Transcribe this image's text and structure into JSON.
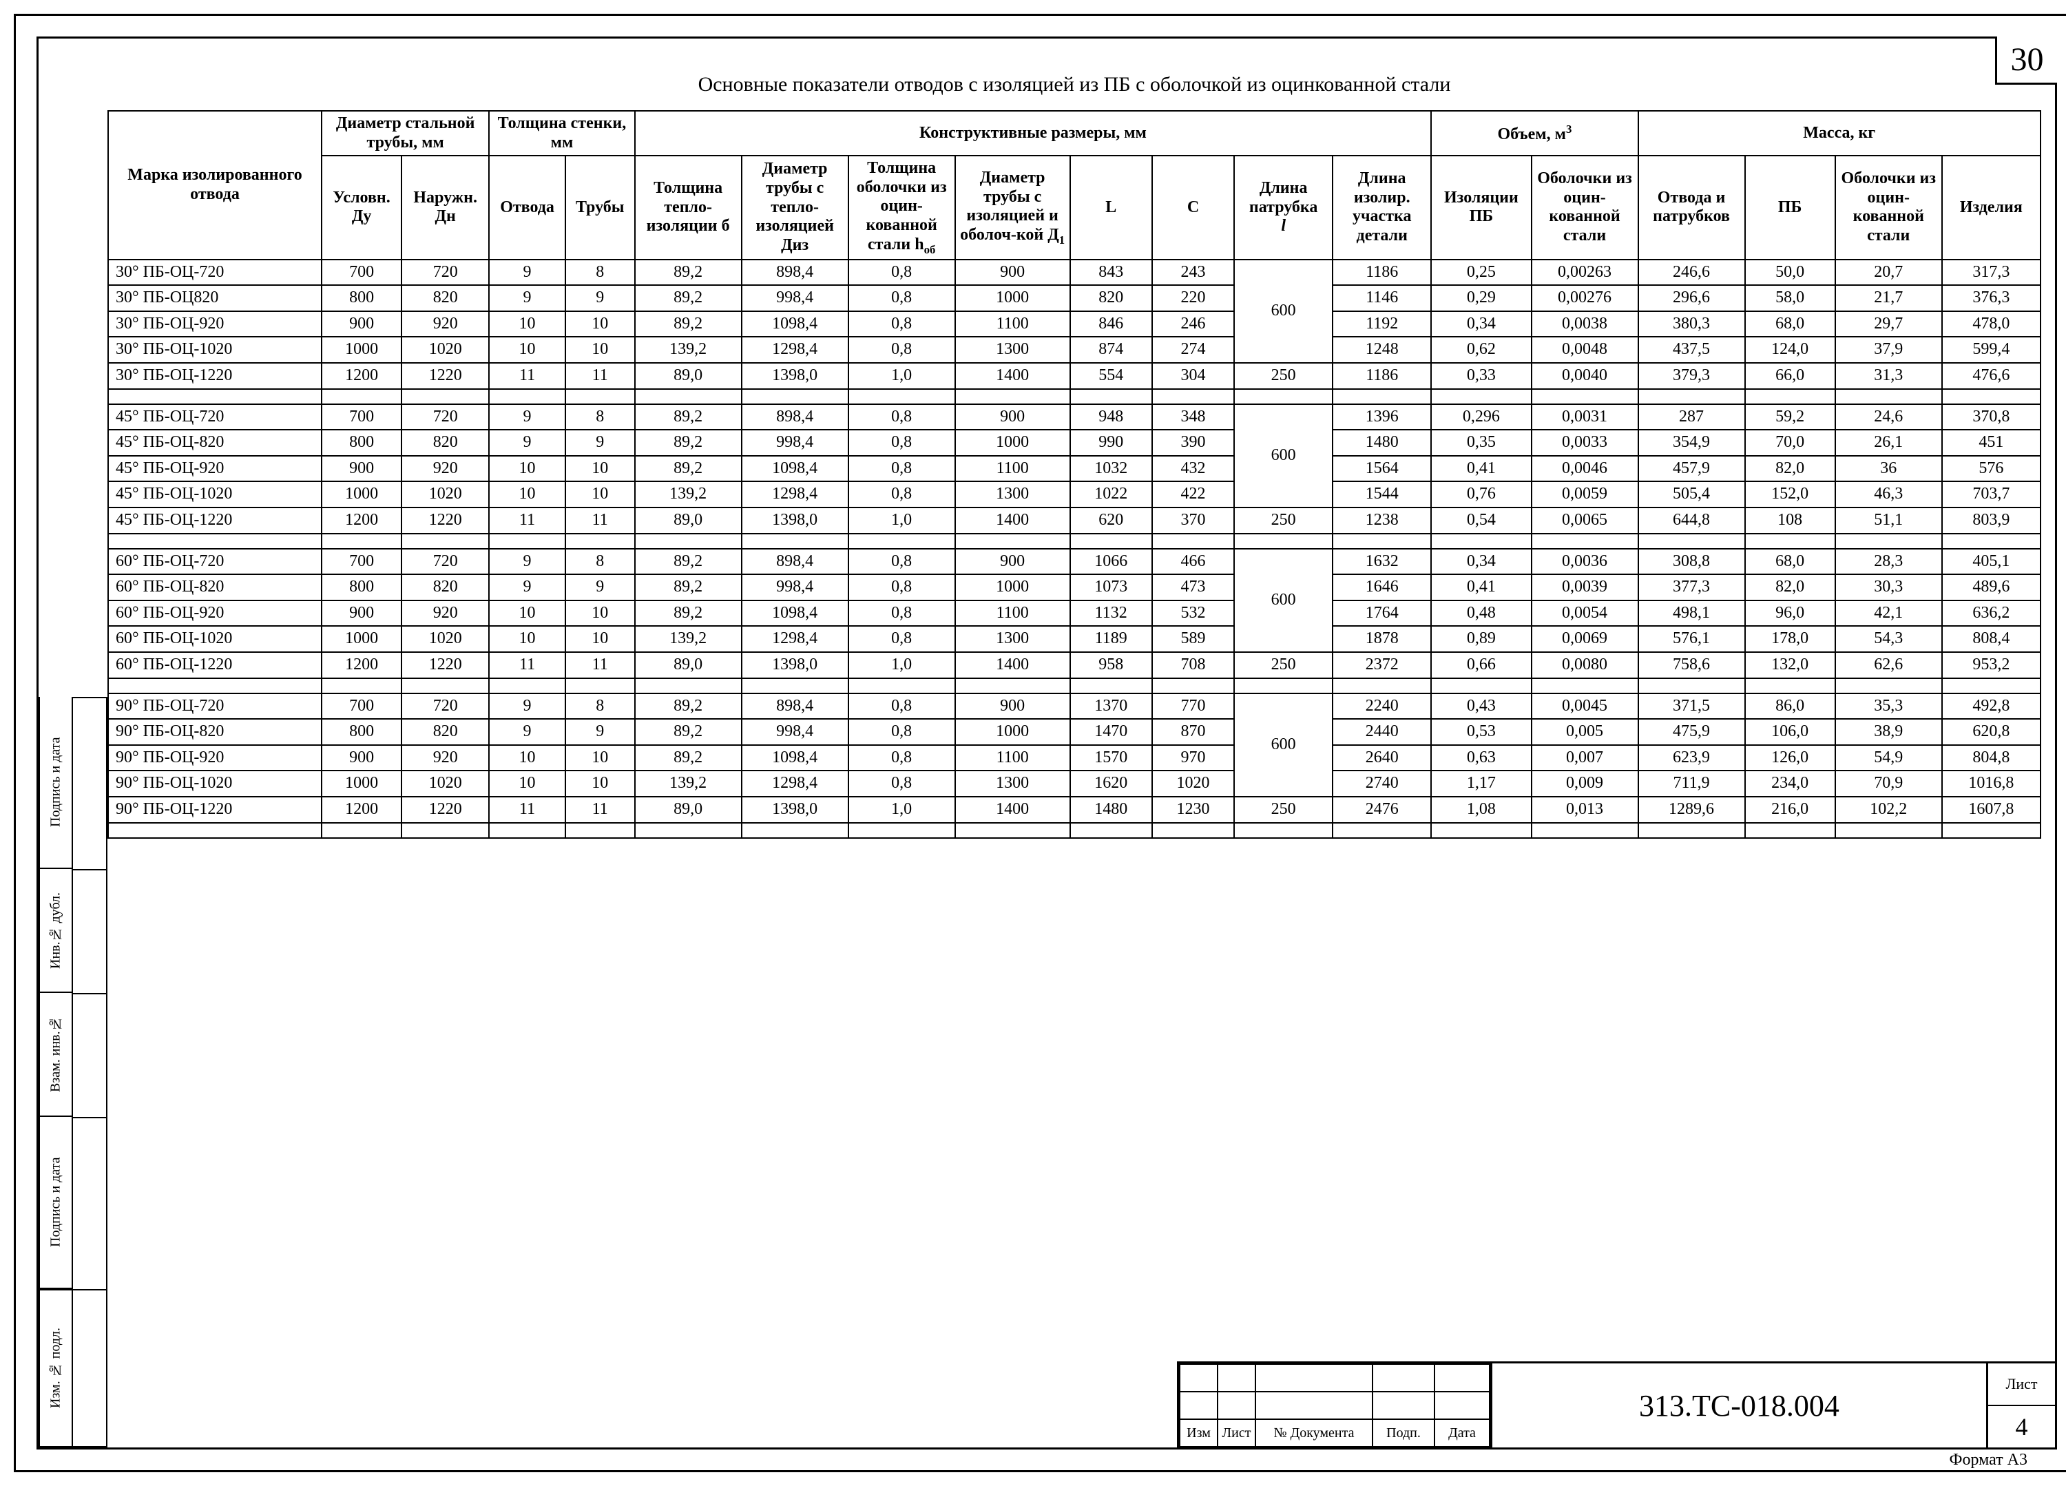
{
  "page_number": "30",
  "title": "Основные показатели отводов с изоляцией из ПБ с оболочкой из оцинкованной стали",
  "headers": {
    "mark": "Марка изолированного отвода",
    "diam_group": "Диаметр стальной трубы, мм",
    "du": "Условн. Ду",
    "dn": "Наружн. Дн",
    "wall_group": "Толщина стенки, мм",
    "otvod": "Отвода",
    "truby": "Трубы",
    "constr_group": "Конструктивные размеры, мм",
    "tiz": "Толщина тепло-изоляции б",
    "diz": "Диаметр трубы с тепло-изоляцией Диз",
    "hob": "Толщина оболочки из оцин-кованной стали h",
    "hob_sub": "об",
    "d1": "Диаметр трубы с изоляцией и оболоч-кой Д",
    "d1_sub": "1",
    "L": "L",
    "C": "C",
    "patr": "Длина патрубка",
    "patr_i": "l",
    "lendet": "Длина изолир. участка детали",
    "vol_group": "Объем, м",
    "vol_sup": "3",
    "vol_pb": "Изоляции ПБ",
    "vol_ob": "Оболочки из оцин-кованной стали",
    "mass_group": "Масса, кг",
    "m_otp": "Отвода и патрубков",
    "m_pb": "ПБ",
    "m_ob": "Оболочки из оцин-кованной стали",
    "m_izd": "Изделия"
  },
  "groups": [
    {
      "patr": "600",
      "rows": [
        [
          "30° ПБ-ОЦ-720",
          "700",
          "720",
          "9",
          "8",
          "89,2",
          "898,4",
          "0,8",
          "900",
          "843",
          "243",
          "1186",
          "0,25",
          "0,00263",
          "246,6",
          "50,0",
          "20,7",
          "317,3"
        ],
        [
          "30° ПБ-ОЦ820",
          "800",
          "820",
          "9",
          "9",
          "89,2",
          "998,4",
          "0,8",
          "1000",
          "820",
          "220",
          "1146",
          "0,29",
          "0,00276",
          "296,6",
          "58,0",
          "21,7",
          "376,3"
        ],
        [
          "30° ПБ-ОЦ-920",
          "900",
          "920",
          "10",
          "10",
          "89,2",
          "1098,4",
          "0,8",
          "1100",
          "846",
          "246",
          "1192",
          "0,34",
          "0,0038",
          "380,3",
          "68,0",
          "29,7",
          "478,0"
        ],
        [
          "30° ПБ-ОЦ-1020",
          "1000",
          "1020",
          "10",
          "10",
          "139,2",
          "1298,4",
          "0,8",
          "1300",
          "874",
          "274",
          "1248",
          "0,62",
          "0,0048",
          "437,5",
          "124,0",
          "37,9",
          "599,4"
        ]
      ],
      "last": [
        "30° ПБ-ОЦ-1220",
        "1200",
        "1220",
        "11",
        "11",
        "89,0",
        "1398,0",
        "1,0",
        "1400",
        "554",
        "304",
        "250",
        "1186",
        "0,33",
        "0,0040",
        "379,3",
        "66,0",
        "31,3",
        "476,6"
      ]
    },
    {
      "patr": "600",
      "rows": [
        [
          "45° ПБ-ОЦ-720",
          "700",
          "720",
          "9",
          "8",
          "89,2",
          "898,4",
          "0,8",
          "900",
          "948",
          "348",
          "1396",
          "0,296",
          "0,0031",
          "287",
          "59,2",
          "24,6",
          "370,8"
        ],
        [
          "45° ПБ-ОЦ-820",
          "800",
          "820",
          "9",
          "9",
          "89,2",
          "998,4",
          "0,8",
          "1000",
          "990",
          "390",
          "1480",
          "0,35",
          "0,0033",
          "354,9",
          "70,0",
          "26,1",
          "451"
        ],
        [
          "45° ПБ-ОЦ-920",
          "900",
          "920",
          "10",
          "10",
          "89,2",
          "1098,4",
          "0,8",
          "1100",
          "1032",
          "432",
          "1564",
          "0,41",
          "0,0046",
          "457,9",
          "82,0",
          "36",
          "576"
        ],
        [
          "45° ПБ-ОЦ-1020",
          "1000",
          "1020",
          "10",
          "10",
          "139,2",
          "1298,4",
          "0,8",
          "1300",
          "1022",
          "422",
          "1544",
          "0,76",
          "0,0059",
          "505,4",
          "152,0",
          "46,3",
          "703,7"
        ]
      ],
      "last": [
        "45° ПБ-ОЦ-1220",
        "1200",
        "1220",
        "11",
        "11",
        "89,0",
        "1398,0",
        "1,0",
        "1400",
        "620",
        "370",
        "250",
        "1238",
        "0,54",
        "0,0065",
        "644,8",
        "108",
        "51,1",
        "803,9"
      ]
    },
    {
      "patr": "600",
      "rows": [
        [
          "60° ПБ-ОЦ-720",
          "700",
          "720",
          "9",
          "8",
          "89,2",
          "898,4",
          "0,8",
          "900",
          "1066",
          "466",
          "1632",
          "0,34",
          "0,0036",
          "308,8",
          "68,0",
          "28,3",
          "405,1"
        ],
        [
          "60° ПБ-ОЦ-820",
          "800",
          "820",
          "9",
          "9",
          "89,2",
          "998,4",
          "0,8",
          "1000",
          "1073",
          "473",
          "1646",
          "0,41",
          "0,0039",
          "377,3",
          "82,0",
          "30,3",
          "489,6"
        ],
        [
          "60° ПБ-ОЦ-920",
          "900",
          "920",
          "10",
          "10",
          "89,2",
          "1098,4",
          "0,8",
          "1100",
          "1132",
          "532",
          "1764",
          "0,48",
          "0,0054",
          "498,1",
          "96,0",
          "42,1",
          "636,2"
        ],
        [
          "60° ПБ-ОЦ-1020",
          "1000",
          "1020",
          "10",
          "10",
          "139,2",
          "1298,4",
          "0,8",
          "1300",
          "1189",
          "589",
          "1878",
          "0,89",
          "0,0069",
          "576,1",
          "178,0",
          "54,3",
          "808,4"
        ]
      ],
      "last": [
        "60° ПБ-ОЦ-1220",
        "1200",
        "1220",
        "11",
        "11",
        "89,0",
        "1398,0",
        "1,0",
        "1400",
        "958",
        "708",
        "250",
        "2372",
        "0,66",
        "0,0080",
        "758,6",
        "132,0",
        "62,6",
        "953,2"
      ]
    },
    {
      "patr": "600",
      "rows": [
        [
          "90° ПБ-ОЦ-720",
          "700",
          "720",
          "9",
          "8",
          "89,2",
          "898,4",
          "0,8",
          "900",
          "1370",
          "770",
          "2240",
          "0,43",
          "0,0045",
          "371,5",
          "86,0",
          "35,3",
          "492,8"
        ],
        [
          "90° ПБ-ОЦ-820",
          "800",
          "820",
          "9",
          "9",
          "89,2",
          "998,4",
          "0,8",
          "1000",
          "1470",
          "870",
          "2440",
          "0,53",
          "0,005",
          "475,9",
          "106,0",
          "38,9",
          "620,8"
        ],
        [
          "90° ПБ-ОЦ-920",
          "900",
          "920",
          "10",
          "10",
          "89,2",
          "1098,4",
          "0,8",
          "1100",
          "1570",
          "970",
          "2640",
          "0,63",
          "0,007",
          "623,9",
          "126,0",
          "54,9",
          "804,8"
        ],
        [
          "90° ПБ-ОЦ-1020",
          "1000",
          "1020",
          "10",
          "10",
          "139,2",
          "1298,4",
          "0,8",
          "1300",
          "1620",
          "1020",
          "2740",
          "1,17",
          "0,009",
          "711,9",
          "234,0",
          "70,9",
          "1016,8"
        ]
      ],
      "last": [
        "90° ПБ-ОЦ-1220",
        "1200",
        "1220",
        "11",
        "11",
        "89,0",
        "1398,0",
        "1,0",
        "1400",
        "1480",
        "1230",
        "250",
        "2476",
        "1,08",
        "0,013",
        "1289,6",
        "216,0",
        "102,2",
        "1607,8"
      ]
    }
  ],
  "side_labels": [
    "Изм. № подл.",
    "Подпись и дата",
    "Взам. инв.№",
    "Инв.№ дубл.",
    "Подпись и дата"
  ],
  "title_block": {
    "cols": [
      "Изм",
      "Лист",
      "№ Документа",
      "Подп.",
      "Дата"
    ],
    "doc_number": "313.ТС-018.004",
    "sheet_label": "Лист",
    "sheet_num": "4"
  },
  "format": "Формат А3",
  "style": {
    "font_family": "Times New Roman",
    "font_size_body": 24,
    "font_size_title": 30,
    "font_size_pagenum": 48,
    "font_size_docnum": 44,
    "border_color": "#000000",
    "background_color": "#ffffff",
    "text_color": "#000000",
    "border_width_outer": 3,
    "border_width_inner": 2
  }
}
